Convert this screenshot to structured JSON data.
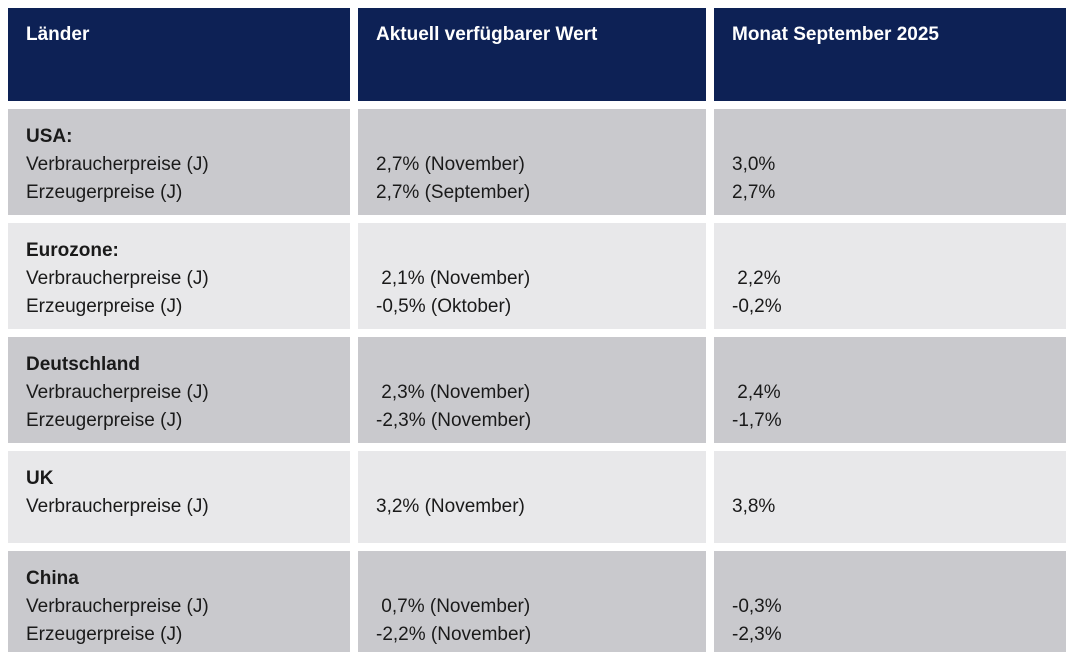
{
  "table": {
    "headers": [
      "Länder",
      "Aktuell verfügbarer Wert",
      "Monat September 2025"
    ],
    "rows": [
      {
        "country": "USA:",
        "indicators": [
          "Verbraucherpreise (J)",
          "Erzeugerpreise (J)"
        ],
        "current": [
          "2,7% (November)",
          "2,7% (September)"
        ],
        "september": [
          "3,0%",
          "2,7%"
        ]
      },
      {
        "country": "Eurozone:",
        "indicators": [
          "Verbraucherpreise (J)",
          "Erzeugerpreise (J)"
        ],
        "current": [
          " 2,1% (November)",
          "-0,5% (Oktober)"
        ],
        "september": [
          " 2,2%",
          "-0,2%"
        ]
      },
      {
        "country": "Deutschland",
        "indicators": [
          "Verbraucherpreise (J)",
          "Erzeugerpreise (J)"
        ],
        "current": [
          " 2,3% (November)",
          "-2,3% (November)"
        ],
        "september": [
          " 2,4%",
          "-1,7%"
        ]
      },
      {
        "country": "UK",
        "indicators": [
          "Verbraucherpreise (J)"
        ],
        "current": [
          "3,2% (November)"
        ],
        "september": [
          "3,8%"
        ]
      },
      {
        "country": "China",
        "indicators": [
          "Verbraucherpreise (J)",
          "Erzeugerpreise (J)"
        ],
        "current": [
          " 0,7% (November)",
          "-2,2% (November)"
        ],
        "september": [
          "-0,3%",
          "-2,3%"
        ]
      }
    ],
    "colors": {
      "header_bg": "#0d2155",
      "header_text": "#ffffff",
      "row_dark": "#c9c9cd",
      "row_light": "#e8e8ea",
      "body_text": "#1a1a1a"
    }
  }
}
